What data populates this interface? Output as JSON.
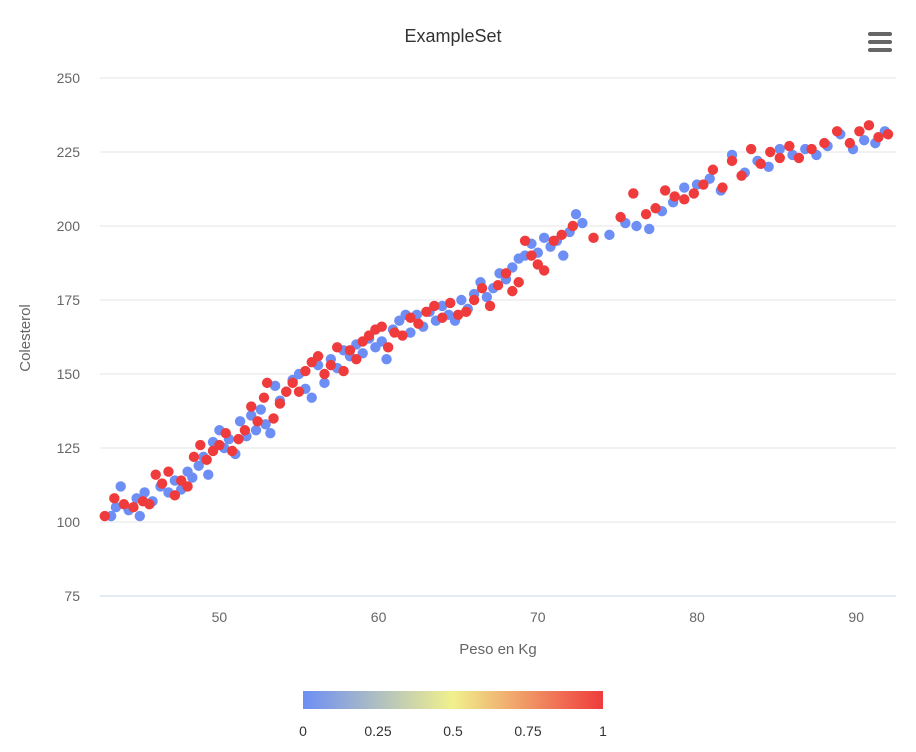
{
  "chart_data": {
    "type": "scatter",
    "title": "ExampleSet",
    "xlabel": "Peso en Kg",
    "ylabel": "Colesterol",
    "xlim": [
      42.5,
      92.5
    ],
    "ylim": [
      75,
      250
    ],
    "xticks": [
      50,
      60,
      70,
      80,
      90
    ],
    "yticks": [
      75,
      100,
      125,
      150,
      175,
      200,
      225,
      250
    ],
    "grid": true,
    "colorbar": {
      "min": 0,
      "max": 1,
      "ticks": [
        "0",
        "0.25",
        "0.5",
        "0.75",
        "1"
      ],
      "colors": [
        "#6d8ef5",
        "#f1f08d",
        "#ef3b3c"
      ],
      "placement": "bottom"
    },
    "series": [
      {
        "color": "#6d8ef5",
        "value": 0,
        "points": [
          [
            43.2,
            102
          ],
          [
            43.5,
            105
          ],
          [
            43.8,
            112
          ],
          [
            44.3,
            104
          ],
          [
            44.8,
            108
          ],
          [
            45.0,
            102
          ],
          [
            45.3,
            110
          ],
          [
            45.8,
            107
          ],
          [
            46.3,
            112
          ],
          [
            46.8,
            110
          ],
          [
            47.2,
            114
          ],
          [
            47.6,
            111
          ],
          [
            48.0,
            117
          ],
          [
            48.3,
            115
          ],
          [
            48.7,
            119
          ],
          [
            49.0,
            122
          ],
          [
            49.3,
            116
          ],
          [
            49.6,
            127
          ],
          [
            50.0,
            131
          ],
          [
            50.3,
            125
          ],
          [
            50.6,
            128
          ],
          [
            51.0,
            123
          ],
          [
            51.3,
            134
          ],
          [
            51.7,
            129
          ],
          [
            52.0,
            136
          ],
          [
            52.3,
            131
          ],
          [
            52.6,
            138
          ],
          [
            52.9,
            133
          ],
          [
            53.2,
            130
          ],
          [
            53.5,
            146
          ],
          [
            53.8,
            141
          ],
          [
            54.2,
            144
          ],
          [
            54.6,
            148
          ],
          [
            55.0,
            150
          ],
          [
            55.4,
            145
          ],
          [
            55.8,
            142
          ],
          [
            56.2,
            153
          ],
          [
            56.6,
            147
          ],
          [
            57.0,
            155
          ],
          [
            57.4,
            152
          ],
          [
            57.8,
            158
          ],
          [
            58.2,
            156
          ],
          [
            58.6,
            160
          ],
          [
            59.0,
            157
          ],
          [
            59.4,
            162
          ],
          [
            59.8,
            159
          ],
          [
            60.2,
            161
          ],
          [
            60.5,
            155
          ],
          [
            60.9,
            165
          ],
          [
            61.3,
            168
          ],
          [
            61.7,
            170
          ],
          [
            62.0,
            164
          ],
          [
            62.4,
            170
          ],
          [
            62.8,
            166
          ],
          [
            63.2,
            171
          ],
          [
            63.6,
            168
          ],
          [
            64.0,
            173
          ],
          [
            64.4,
            170
          ],
          [
            64.8,
            168
          ],
          [
            65.2,
            175
          ],
          [
            65.6,
            172
          ],
          [
            66.0,
            177
          ],
          [
            66.4,
            181
          ],
          [
            66.8,
            176
          ],
          [
            67.2,
            179
          ],
          [
            67.6,
            184
          ],
          [
            68.0,
            182
          ],
          [
            68.4,
            186
          ],
          [
            68.8,
            189
          ],
          [
            69.2,
            190
          ],
          [
            69.6,
            194
          ],
          [
            70.0,
            191
          ],
          [
            70.4,
            196
          ],
          [
            70.8,
            193
          ],
          [
            71.2,
            195
          ],
          [
            71.6,
            190
          ],
          [
            72.0,
            198
          ],
          [
            72.4,
            204
          ],
          [
            72.8,
            201
          ],
          [
            74.5,
            197
          ],
          [
            75.5,
            201
          ],
          [
            76.2,
            200
          ],
          [
            77.0,
            199
          ],
          [
            77.8,
            205
          ],
          [
            78.5,
            208
          ],
          [
            79.2,
            213
          ],
          [
            80.0,
            214
          ],
          [
            80.8,
            216
          ],
          [
            81.5,
            212
          ],
          [
            82.2,
            224
          ],
          [
            83.0,
            218
          ],
          [
            83.8,
            222
          ],
          [
            84.5,
            220
          ],
          [
            85.2,
            226
          ],
          [
            86.0,
            224
          ],
          [
            86.8,
            226
          ],
          [
            87.5,
            224
          ],
          [
            88.2,
            227
          ],
          [
            89.0,
            231
          ],
          [
            89.8,
            226
          ],
          [
            90.5,
            229
          ],
          [
            91.2,
            228
          ],
          [
            91.8,
            232
          ]
        ]
      },
      {
        "color": "#ef3b3c",
        "value": 1,
        "points": [
          [
            42.8,
            102
          ],
          [
            43.4,
            108
          ],
          [
            44.0,
            106
          ],
          [
            44.6,
            105
          ],
          [
            45.2,
            107
          ],
          [
            45.6,
            106
          ],
          [
            46.0,
            116
          ],
          [
            46.4,
            113
          ],
          [
            46.8,
            117
          ],
          [
            47.2,
            109
          ],
          [
            47.6,
            114
          ],
          [
            48.0,
            112
          ],
          [
            48.4,
            122
          ],
          [
            48.8,
            126
          ],
          [
            49.2,
            121
          ],
          [
            49.6,
            124
          ],
          [
            50.0,
            126
          ],
          [
            50.4,
            130
          ],
          [
            50.8,
            124
          ],
          [
            51.2,
            128
          ],
          [
            51.6,
            131
          ],
          [
            52.0,
            139
          ],
          [
            52.4,
            134
          ],
          [
            52.8,
            142
          ],
          [
            53.0,
            147
          ],
          [
            53.4,
            135
          ],
          [
            53.8,
            140
          ],
          [
            54.2,
            144
          ],
          [
            54.6,
            147
          ],
          [
            55.0,
            144
          ],
          [
            55.4,
            151
          ],
          [
            55.8,
            154
          ],
          [
            56.2,
            156
          ],
          [
            56.6,
            150
          ],
          [
            57.0,
            153
          ],
          [
            57.4,
            159
          ],
          [
            57.8,
            151
          ],
          [
            58.2,
            158
          ],
          [
            58.6,
            155
          ],
          [
            59.0,
            161
          ],
          [
            59.4,
            163
          ],
          [
            59.8,
            165
          ],
          [
            60.2,
            166
          ],
          [
            60.6,
            159
          ],
          [
            61.0,
            164
          ],
          [
            61.5,
            163
          ],
          [
            62.0,
            169
          ],
          [
            62.5,
            167
          ],
          [
            63.0,
            171
          ],
          [
            63.5,
            173
          ],
          [
            64.0,
            169
          ],
          [
            64.5,
            174
          ],
          [
            65.0,
            170
          ],
          [
            65.5,
            171
          ],
          [
            66.0,
            175
          ],
          [
            66.5,
            179
          ],
          [
            67.0,
            173
          ],
          [
            67.5,
            180
          ],
          [
            68.0,
            184
          ],
          [
            68.4,
            178
          ],
          [
            68.8,
            181
          ],
          [
            69.2,
            195
          ],
          [
            69.6,
            190
          ],
          [
            70.0,
            187
          ],
          [
            70.4,
            185
          ],
          [
            71.0,
            195
          ],
          [
            71.5,
            197
          ],
          [
            72.2,
            200
          ],
          [
            73.5,
            196
          ],
          [
            75.2,
            203
          ],
          [
            76.0,
            211
          ],
          [
            76.8,
            204
          ],
          [
            77.4,
            206
          ],
          [
            78.0,
            212
          ],
          [
            78.6,
            210
          ],
          [
            79.2,
            209
          ],
          [
            79.8,
            211
          ],
          [
            80.4,
            214
          ],
          [
            81.0,
            219
          ],
          [
            81.6,
            213
          ],
          [
            82.2,
            222
          ],
          [
            82.8,
            217
          ],
          [
            83.4,
            226
          ],
          [
            84.0,
            221
          ],
          [
            84.6,
            225
          ],
          [
            85.2,
            223
          ],
          [
            85.8,
            227
          ],
          [
            86.4,
            223
          ],
          [
            87.2,
            226
          ],
          [
            88.0,
            228
          ],
          [
            88.8,
            232
          ],
          [
            89.6,
            228
          ],
          [
            90.2,
            232
          ],
          [
            90.8,
            234
          ],
          [
            91.4,
            230
          ],
          [
            92.0,
            231
          ]
        ]
      }
    ]
  }
}
